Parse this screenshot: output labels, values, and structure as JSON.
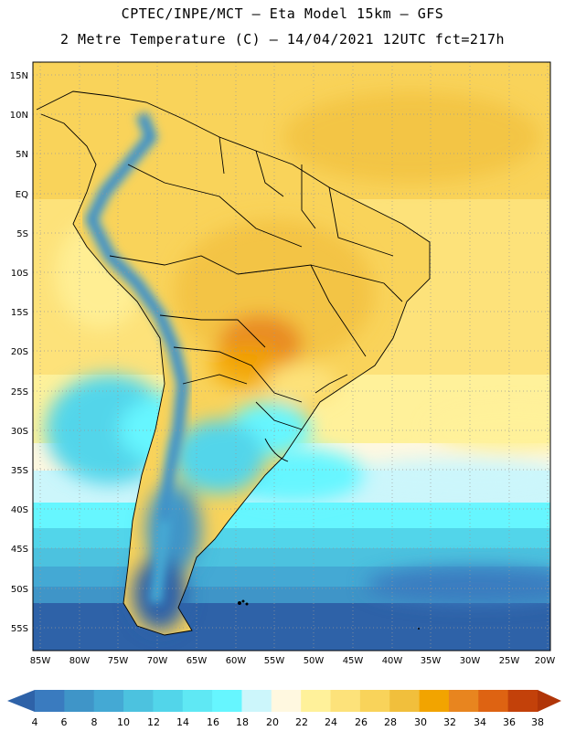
{
  "header": {
    "line1": "CPTEC/INPE/MCT –  Eta Model 15km – GFS",
    "line2": "2 Metre Temperature (C) – 14/04/2021 12UTC fct=217h"
  },
  "map": {
    "lat_labels": [
      "15N",
      "10N",
      "5N",
      "EQ",
      "5S",
      "10S",
      "15S",
      "20S",
      "25S",
      "30S",
      "35S",
      "40S",
      "45S",
      "50S",
      "55S"
    ],
    "lon_labels": [
      "85W",
      "80W",
      "75W",
      "70W",
      "65W",
      "60W",
      "55W",
      "50W",
      "45W",
      "40W",
      "35W",
      "30W",
      "25W",
      "20W"
    ],
    "region": "South America"
  },
  "colorbar": {
    "labels": [
      "4",
      "6",
      "8",
      "10",
      "12",
      "14",
      "16",
      "18",
      "20",
      "22",
      "24",
      "26",
      "28",
      "30",
      "32",
      "34",
      "36",
      "38"
    ],
    "colors": [
      "#2e62a8",
      "#3a7bbf",
      "#3f95c8",
      "#44a9d4",
      "#4cc2df",
      "#52d5ea",
      "#5fe8f4",
      "#66f6ff",
      "#ccf6fb",
      "#fff8e0",
      "#fff19a",
      "#fde27a",
      "#f9d35a",
      "#f1bf3c",
      "#f2a400",
      "#e8851f",
      "#de6312",
      "#c3410a",
      "#b03508"
    ]
  }
}
